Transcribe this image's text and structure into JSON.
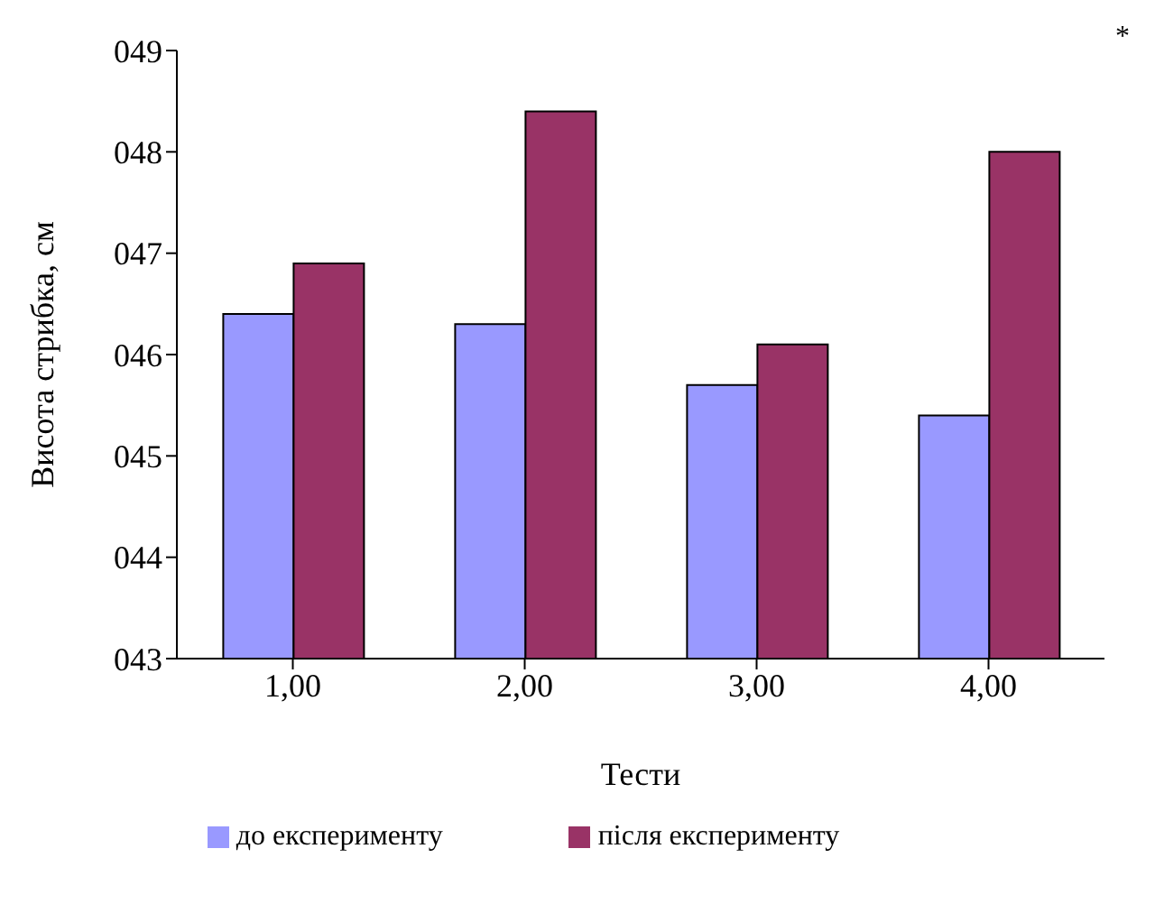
{
  "chart_data": {
    "type": "bar",
    "xlabel": "Тести",
    "ylabel": "Висота стрибка, см",
    "categories": [
      "1,00",
      "2,00",
      "3,00",
      "4,00"
    ],
    "series": [
      {
        "name": "до експерименту",
        "color": "#9999ff",
        "values": [
          46.4,
          46.3,
          45.7,
          45.4
        ]
      },
      {
        "name": "після експерименту",
        "color": "#993366",
        "values": [
          46.9,
          48.4,
          46.1,
          48.0
        ]
      }
    ],
    "ylim": [
      43,
      49
    ],
    "yticks": [
      {
        "value": 43,
        "label": "043"
      },
      {
        "value": 44,
        "label": "044"
      },
      {
        "value": 45,
        "label": "045"
      },
      {
        "value": 46,
        "label": "046"
      },
      {
        "value": 47,
        "label": "047"
      },
      {
        "value": 48,
        "label": "048"
      },
      {
        "value": 49,
        "label": "049"
      }
    ],
    "annotations": [
      "*"
    ],
    "legend": "bottom",
    "grid": false
  }
}
